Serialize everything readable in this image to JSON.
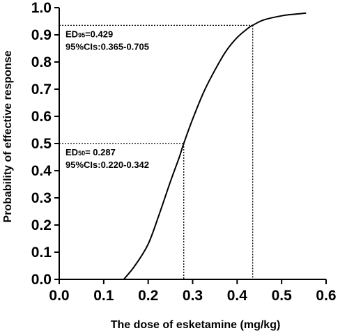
{
  "chart_data": {
    "type": "line",
    "xlabel": "The dose of esketamine (mg/kg)",
    "ylabel": "Probability of effective response",
    "xlim": [
      0.0,
      0.6
    ],
    "ylim": [
      0.0,
      1.0
    ],
    "x_ticks": [
      "0.0",
      "0.1",
      "0.2",
      "0.3",
      "0.4",
      "0.5",
      "0.6"
    ],
    "y_ticks": [
      "0.0",
      "0.1",
      "0.2",
      "0.3",
      "0.4",
      "0.5",
      "0.6",
      "0.7",
      "0.8",
      "0.9",
      "1.0"
    ],
    "grid": false,
    "series": [
      {
        "x": [
          0.145,
          0.17,
          0.2,
          0.225,
          0.25,
          0.27,
          0.28,
          0.3,
          0.325,
          0.35,
          0.375,
          0.4,
          0.425,
          0.435,
          0.46,
          0.5,
          0.53,
          0.555
        ],
        "y": [
          0.0,
          0.05,
          0.13,
          0.24,
          0.36,
          0.45,
          0.5,
          0.59,
          0.69,
          0.77,
          0.84,
          0.89,
          0.925,
          0.935,
          0.955,
          0.97,
          0.976,
          0.98
        ]
      }
    ],
    "annotations": [
      {
        "prefix": "ED",
        "sub": "95",
        "suffix": "=0.429",
        "ci": "95%CIs:0.365-0.705",
        "x_at": 0.435,
        "y_at": 0.935
      },
      {
        "prefix": "ED",
        "sub": "50",
        "suffix": "= 0.287",
        "ci": "95%CIs:0.220-0.342",
        "x_at": 0.28,
        "y_at": 0.5
      }
    ]
  }
}
